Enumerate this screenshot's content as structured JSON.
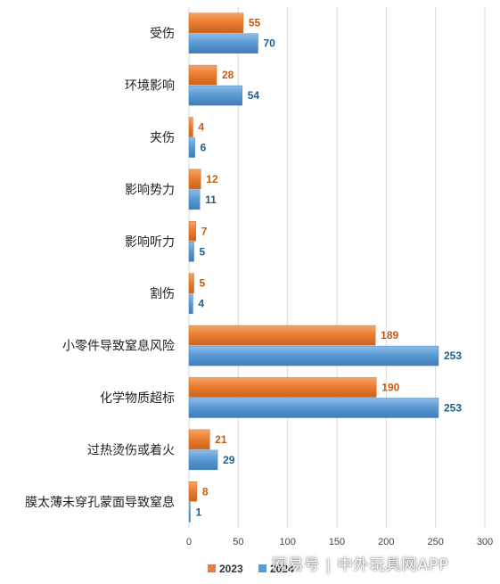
{
  "chart_data": {
    "type": "bar",
    "orientation": "horizontal",
    "categories": [
      "受伤",
      "环境影响",
      "夹伤",
      "影响势力",
      "影响听力",
      "割伤",
      "小零件导致窒息风险",
      "化学物质超标",
      "过热烫伤或着火",
      "膜太薄未穿孔蒙面导致窒息"
    ],
    "series": [
      {
        "name": "2023",
        "values": [
          55,
          28,
          4,
          12,
          7,
          5,
          189,
          190,
          21,
          8
        ]
      },
      {
        "name": "2024",
        "values": [
          70,
          54,
          6,
          11,
          5,
          4,
          253,
          253,
          29,
          1
        ]
      }
    ],
    "xlim": [
      0,
      300
    ],
    "xticks": [
      0,
      50,
      100,
      150,
      200,
      250,
      300
    ],
    "grid": "vertical",
    "legend_position": "bottom",
    "colors": {
      "2023": "#ED7D31",
      "2024": "#5B9BD5",
      "label_2023": "#C55A11",
      "label_2024": "#1F5F8B"
    }
  },
  "watermark_text": "网易号 | 中外玩具网APP"
}
